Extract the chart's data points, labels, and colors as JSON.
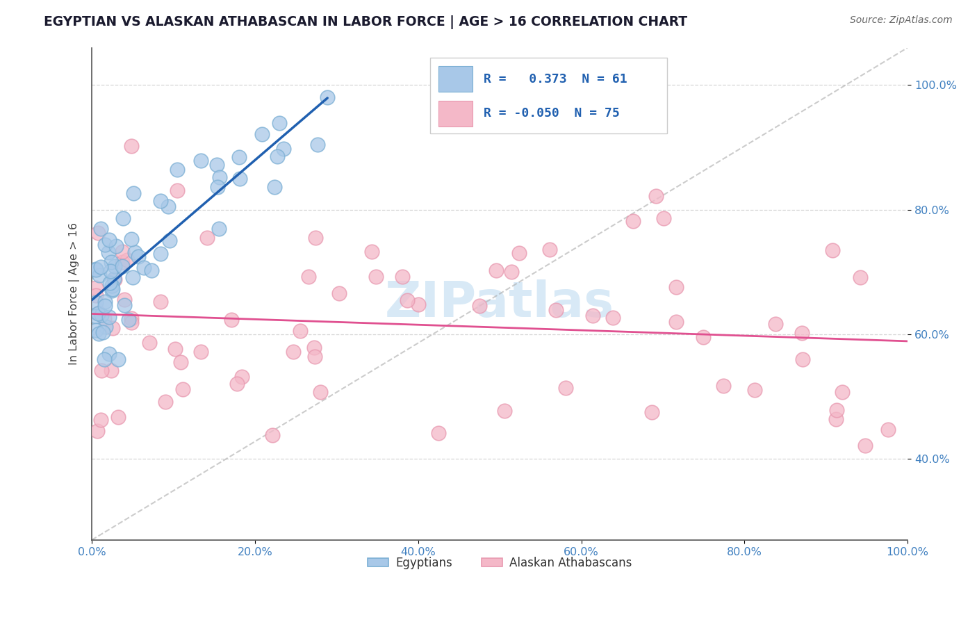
{
  "title": "EGYPTIAN VS ALASKAN ATHABASCAN IN LABOR FORCE | AGE > 16 CORRELATION CHART",
  "source": "Source: ZipAtlas.com",
  "ylabel": "In Labor Force | Age > 16",
  "xlim": [
    0.0,
    1.0
  ],
  "ylim": [
    0.27,
    1.06
  ],
  "x_ticks": [
    0.0,
    0.2,
    0.4,
    0.6,
    0.8,
    1.0
  ],
  "x_tick_labels": [
    "0.0%",
    "20.0%",
    "40.0%",
    "60.0%",
    "80.0%",
    "100.0%"
  ],
  "y_ticks": [
    0.4,
    0.6,
    0.8,
    1.0
  ],
  "y_tick_labels": [
    "40.0%",
    "60.0%",
    "80.0%",
    "100.0%"
  ],
  "blue_fill": "#a8c8e8",
  "blue_edge": "#7bafd4",
  "pink_fill": "#f4b8c8",
  "pink_edge": "#e899b0",
  "blue_line_color": "#2060b0",
  "pink_line_color": "#e05090",
  "tick_label_color": "#4080c0",
  "watermark_color": "#b8d8f0",
  "egyptians_label": "Egyptians",
  "athabascan_label": "Alaskan Athabascans",
  "legend_box_color": "#f8f8f8",
  "legend_edge_color": "#dddddd",
  "legend_text_color": "#2060b0",
  "legend_r1_val": "0.373",
  "legend_r2_val": "-0.050",
  "legend_n1": "61",
  "legend_n2": "75"
}
